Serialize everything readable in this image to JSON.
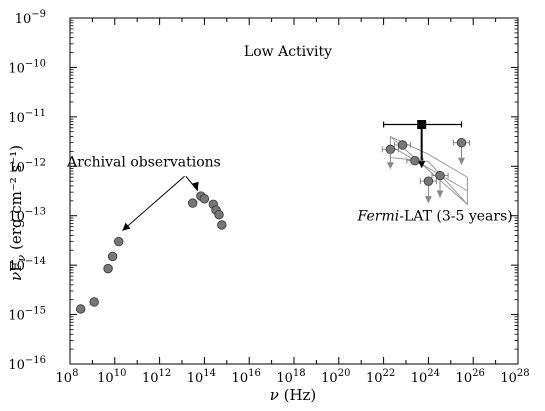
{
  "chart_data": {
    "type": "scatter",
    "title": "Low Activity",
    "xlabel": "ν (Hz)",
    "ylabel": "νFν (erg cm⁻² s⁻¹)",
    "x_scale": "log",
    "y_scale": "log",
    "xlim": [
      100000000.0,
      1e+28
    ],
    "ylim": [
      1e-16,
      1e-09
    ],
    "x_ticks": [
      {
        "base": "10",
        "exp": "8"
      },
      {
        "base": "10",
        "exp": "10"
      },
      {
        "base": "10",
        "exp": "12"
      },
      {
        "base": "10",
        "exp": "14"
      },
      {
        "base": "10",
        "exp": "16"
      },
      {
        "base": "10",
        "exp": "18"
      },
      {
        "base": "10",
        "exp": "20"
      },
      {
        "base": "10",
        "exp": "22"
      },
      {
        "base": "10",
        "exp": "24"
      },
      {
        "base": "10",
        "exp": "26"
      },
      {
        "base": "10",
        "exp": "28"
      }
    ],
    "y_ticks": [
      {
        "base": "10",
        "exp": "−9"
      },
      {
        "base": "10",
        "exp": "−10"
      },
      {
        "base": "10",
        "exp": "−11"
      },
      {
        "base": "10",
        "exp": "−12"
      },
      {
        "base": "10",
        "exp": "−13"
      },
      {
        "base": "10",
        "exp": "−14"
      },
      {
        "base": "10",
        "exp": "−15"
      },
      {
        "base": "10",
        "exp": "−16"
      }
    ],
    "grid": false,
    "series": [
      {
        "name": "Archival observations",
        "color": "#777777",
        "points": [
          {
            "x": 300000000.0,
            "y": 1.3e-15
          },
          {
            "x": 1200000000.0,
            "y": 1.8e-15
          },
          {
            "x": 5000000000.0,
            "y": 8.5e-15
          },
          {
            "x": 8000000000.0,
            "y": 1.5e-14
          },
          {
            "x": 15000000000.0,
            "y": 3e-14
          },
          {
            "x": 30000000000000.0,
            "y": 1.8e-13
          },
          {
            "x": 70000000000000.0,
            "y": 2.5e-13
          },
          {
            "x": 100000000000000.0,
            "y": 2.2e-13
          },
          {
            "x": 250000000000000.0,
            "y": 1.7e-13
          },
          {
            "x": 330000000000000.0,
            "y": 1.3e-13
          },
          {
            "x": 450000000000000.0,
            "y": 1.05e-13
          },
          {
            "x": 600000000000000.0,
            "y": 6.5e-14
          }
        ]
      },
      {
        "name": "Fermi-LAT (3-5 years)",
        "color": "#777777",
        "points": [
          {
            "x": 2e+22,
            "y": 2.2e-12,
            "xerr_lo": 0.18,
            "xerr_hi": 0.18,
            "upper_limit": false
          },
          {
            "x": 7e+22,
            "y": 2.7e-12,
            "xerr_lo": 0.18,
            "xerr_hi": 0.18,
            "upper_limit": false
          },
          {
            "x": 2.5e+23,
            "y": 1.3e-12,
            "xerr_lo": 0.18,
            "xerr_hi": 0.18,
            "upper_limit": false
          },
          {
            "x": 1e+24,
            "y": 5e-13,
            "xerr_lo": 0.18,
            "xerr_hi": 0.18,
            "upper_limit": true
          },
          {
            "x": 3.3e+24,
            "y": 6.5e-13,
            "xerr_lo": 0.18,
            "xerr_hi": 0.18,
            "upper_limit": true
          },
          {
            "x": 3e+25,
            "y": 3e-12,
            "xerr_lo": 0.18,
            "xerr_hi": 0.18,
            "upper_limit": true
          }
        ],
        "upper_limits_extra": [
          {
            "x": 2e+22,
            "y": 1e-12
          }
        ],
        "butterfly": {
          "pivot_x": 1e+24,
          "lower": [
            {
              "x": 2e+22,
              "y": 1.5e-12
            },
            {
              "x": 1e+24,
              "y": 1.25e-12
            },
            {
              "x": 5.5e+25,
              "y": 1.7e-13
            }
          ],
          "upper": [
            {
              "x": 2e+22,
              "y": 4e-12
            },
            {
              "x": 1e+24,
              "y": 1.75e-12
            },
            {
              "x": 5.5e+25,
              "y": 6e-13
            }
          ],
          "fit": [
            {
              "x": 2e+22,
              "y": 2.6e-12
            },
            {
              "x": 5.5e+25,
              "y": 3.2e-13
            }
          ]
        }
      },
      {
        "name": "",
        "color": "#000000",
        "marker": "square",
        "points": [
          {
            "x": 5e+23,
            "y": 7e-12,
            "xmin": 1e+22,
            "xmax": 3e+25,
            "upper_limit": true,
            "arrow_to_y": 1e-12
          }
        ]
      }
    ],
    "annotations": [
      {
        "text": "Low Activity",
        "x": 1e+22,
        "y": 3.5e-10
      },
      {
        "text": "Archival observations",
        "x": 200000000000.0,
        "y": 1e-12
      },
      {
        "text_italic": "Fermi",
        "text": "-LAT (3-5 years)",
        "x": 2e+24,
        "y": 1e-13
      }
    ]
  }
}
